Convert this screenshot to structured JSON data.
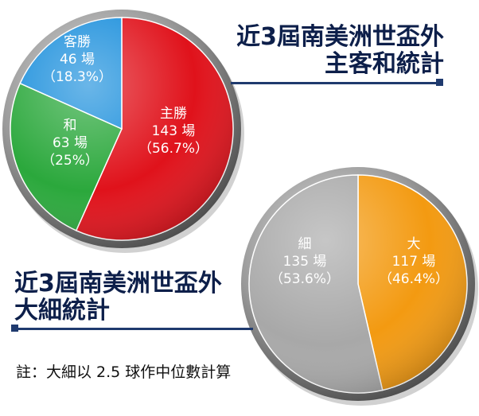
{
  "titles": {
    "home_away_line1": "近3屆南美洲世盃外",
    "home_away_line2": "主客和統計",
    "over_under_line1": "近3屆南美洲世盃外",
    "over_under_line2": "大細統計"
  },
  "note": "註：大細以 2.5 球作中位數計算",
  "chart_data": [
    {
      "type": "pie",
      "title": "近3屆南美洲世盃外主客和統計",
      "slices": [
        {
          "name": "主勝",
          "count": "143 場",
          "percent_label": "（56.7%）",
          "value": 56.7,
          "color": "#e0121b"
        },
        {
          "name": "和",
          "count": "63 場",
          "percent_label": "（25%）",
          "value": 25.0,
          "color": "#2ba83c"
        },
        {
          "name": "客勝",
          "count": "46 場",
          "percent_label": "（18.3%）",
          "value": 18.3,
          "color": "#1b8fdc"
        }
      ]
    },
    {
      "type": "pie",
      "title": "近3屆南美洲世盃外大細統計",
      "slices": [
        {
          "name": "大",
          "count": "117 場",
          "percent_label": "（46.4%）",
          "value": 46.4,
          "color": "#f39a11"
        },
        {
          "name": "細",
          "count": "135 場",
          "percent_label": "（53.6%）",
          "value": 53.6,
          "color": "#a8a8a8"
        }
      ]
    }
  ]
}
